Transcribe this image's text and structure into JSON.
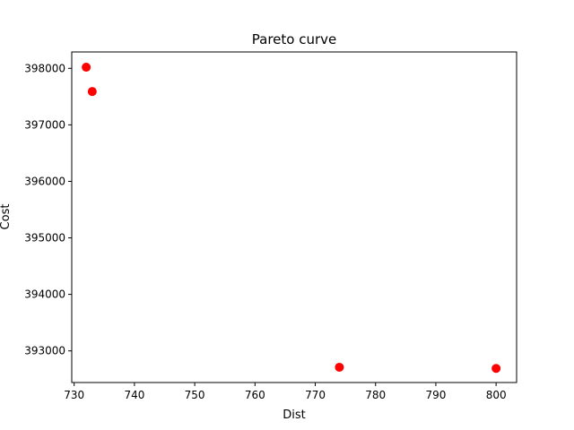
{
  "chart_data": {
    "type": "scatter",
    "title": "Pareto curve",
    "xlabel": "Dist",
    "ylabel": "Cost",
    "xlim": [
      729.6,
      803.4
    ],
    "ylim": [
      392440,
      398290
    ],
    "xticks": [
      730,
      740,
      750,
      760,
      770,
      780,
      790,
      800
    ],
    "yticks": [
      393000,
      394000,
      395000,
      396000,
      397000,
      398000
    ],
    "grid": false,
    "series": [
      {
        "color": "#ff0000",
        "marker": "circle",
        "points": [
          {
            "x": 732,
            "y": 398020
          },
          {
            "x": 733,
            "y": 397590
          },
          {
            "x": 774,
            "y": 392710
          },
          {
            "x": 800,
            "y": 392690
          }
        ]
      }
    ]
  }
}
